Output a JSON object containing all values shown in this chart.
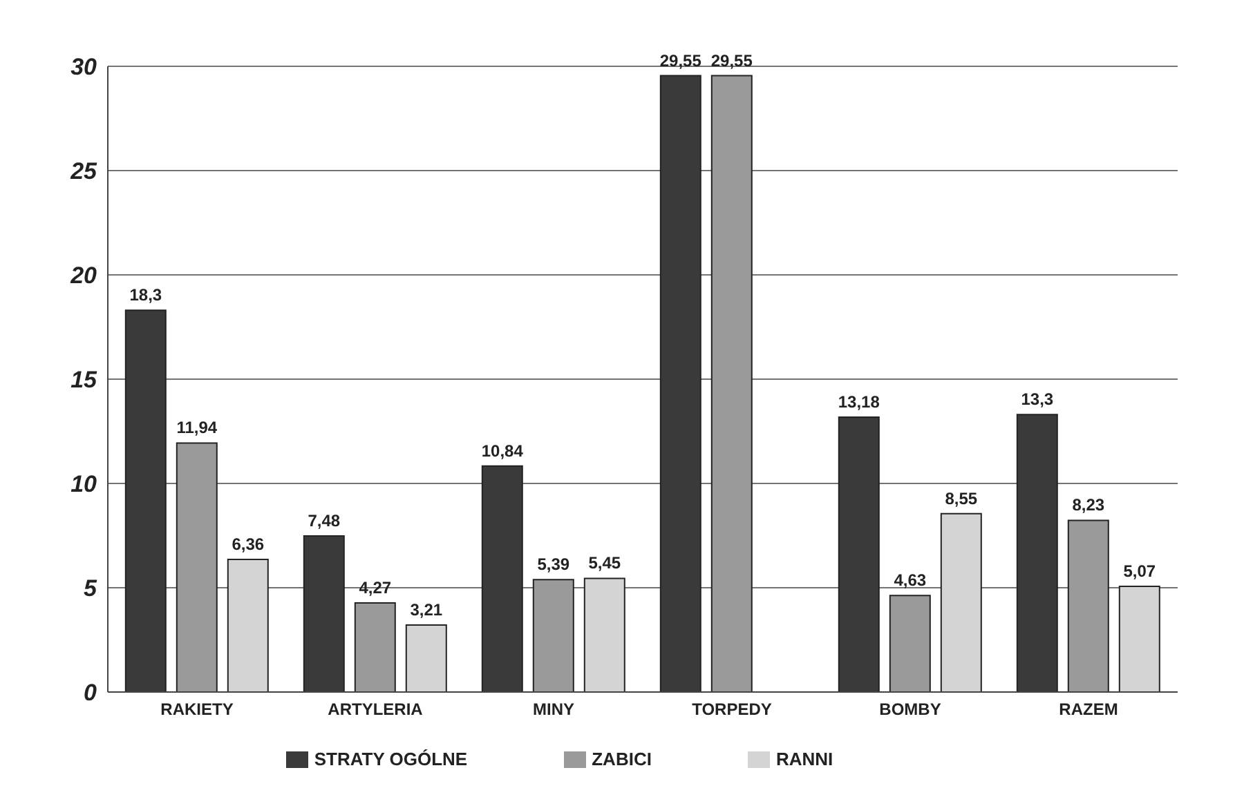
{
  "chart_data": {
    "type": "bar",
    "categories": [
      "RAKIETY",
      "ARTYLERIA",
      "MINY",
      "TORPEDY",
      "BOMBY",
      "RAZEM"
    ],
    "series": [
      {
        "name": "STRATY OGÓLNE",
        "color": "#3a3a3a",
        "values": [
          18.3,
          7.48,
          10.84,
          29.55,
          13.18,
          13.3
        ],
        "value_labels": [
          "18,3",
          "7,48",
          "10,84",
          "29,55",
          "13,18",
          "13,3"
        ]
      },
      {
        "name": "ZABICI",
        "color": "#9a9a9a",
        "values": [
          11.94,
          4.27,
          5.39,
          29.55,
          4.63,
          8.23
        ],
        "value_labels": [
          "11,94",
          "4,27",
          "5,39",
          "29,55",
          "4,63",
          "8,23"
        ]
      },
      {
        "name": "RANNI",
        "color": "#d4d4d4",
        "values": [
          6.36,
          3.21,
          5.45,
          0,
          8.55,
          5.07
        ],
        "value_labels": [
          "6,36",
          "3,21",
          "5,45",
          null,
          "8,55",
          "5,07"
        ]
      }
    ],
    "ylim": [
      0,
      30
    ],
    "yticks": [
      0,
      5,
      10,
      15,
      20,
      25,
      30
    ],
    "grid": "y",
    "legend": "bottom"
  }
}
